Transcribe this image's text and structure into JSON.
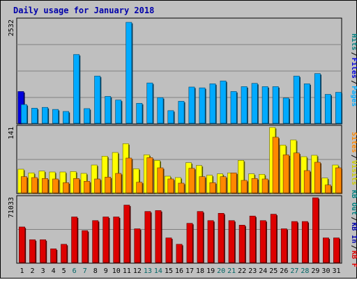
{
  "title": "Daily usage for January 2018",
  "colors": {
    "title": "#0000aa",
    "frame_bg": "#c0c0c0",
    "panel_bg": "#bfbfbf",
    "pages": "#00aaff",
    "files": "#0000dd",
    "hits": "#008080",
    "visits": "#ffff00",
    "sites": "#ff8800",
    "kbout": "#008080",
    "kbin": "#0000aa",
    "kbf": "#dd0000",
    "weekend_label": "#006666"
  },
  "chart_data": [
    {
      "type": "bar",
      "name": "pages-files-hits",
      "max_label": "2532",
      "ymax": 2532,
      "legend": [
        {
          "label": "Pages",
          "color": "#00aaff"
        },
        {
          "label": "Files",
          "color": "#0000dd"
        },
        {
          "label": "Hits",
          "color": "#008080"
        }
      ],
      "categories": [
        "1",
        "2",
        "3",
        "4",
        "5",
        "6",
        "7",
        "8",
        "9",
        "10",
        "11",
        "12",
        "13",
        "14",
        "15",
        "16",
        "17",
        "18",
        "19",
        "20",
        "21",
        "22",
        "23",
        "24",
        "25",
        "26",
        "27",
        "28",
        "29",
        "30",
        "31"
      ],
      "weekend": [
        6,
        7,
        13,
        14,
        20,
        21,
        27,
        28
      ],
      "series": [
        {
          "name": "Files",
          "color": "#0000dd",
          "values": [
            780,
            0,
            0,
            0,
            0,
            0,
            0,
            0,
            0,
            0,
            0,
            0,
            0,
            0,
            0,
            0,
            0,
            0,
            0,
            0,
            0,
            0,
            0,
            0,
            0,
            0,
            0,
            0,
            0,
            0,
            0
          ]
        },
        {
          "name": "Hits",
          "color": "#00aaff",
          "values": [
            460,
            370,
            390,
            340,
            290,
            1690,
            360,
            1160,
            660,
            570,
            2480,
            490,
            990,
            630,
            310,
            540,
            890,
            870,
            970,
            1040,
            780,
            900,
            980,
            900,
            900,
            620,
            1160,
            970,
            1220,
            710,
            760
          ]
        }
      ]
    },
    {
      "type": "bar",
      "name": "visits-sites",
      "max_label": "141",
      "ymax": 141,
      "legend": [
        {
          "label": "Visits",
          "color": "#cccc00"
        },
        {
          "label": "Sites",
          "color": "#ff8800"
        }
      ],
      "categories": [
        "1",
        "2",
        "3",
        "4",
        "5",
        "6",
        "7",
        "8",
        "9",
        "10",
        "11",
        "12",
        "13",
        "14",
        "15",
        "16",
        "17",
        "18",
        "19",
        "20",
        "21",
        "22",
        "23",
        "24",
        "25",
        "26",
        "27",
        "28",
        "29",
        "30",
        "31"
      ],
      "series": [
        {
          "name": "Visits",
          "color": "#ffff00",
          "values": [
            51,
            43,
            47,
            45,
            45,
            46,
            42,
            60,
            79,
            87,
            106,
            52,
            82,
            70,
            36,
            33,
            65,
            59,
            38,
            41,
            43,
            70,
            41,
            40,
            141,
            103,
            114,
            78,
            81,
            32,
            60
          ]
        },
        {
          "name": "Sites",
          "color": "#ff8800",
          "values": [
            35,
            33,
            31,
            30,
            22,
            31,
            25,
            30,
            34,
            42,
            75,
            23,
            76,
            54,
            30,
            21,
            53,
            35,
            22,
            35,
            43,
            27,
            31,
            30,
            120,
            82,
            86,
            48,
            66,
            17,
            54
          ]
        }
      ]
    },
    {
      "type": "bar",
      "name": "kbf-kbin-kbout",
      "max_label": "71033",
      "ymax": 71033,
      "legend": [
        {
          "label": "KB F",
          "color": "#dd0000"
        },
        {
          "label": "KB In",
          "color": "#0000aa"
        },
        {
          "label": "KB Out",
          "color": "#008080"
        }
      ],
      "categories": [
        "1",
        "2",
        "3",
        "4",
        "5",
        "6",
        "7",
        "8",
        "9",
        "10",
        "11",
        "12",
        "13",
        "14",
        "15",
        "16",
        "17",
        "18",
        "19",
        "20",
        "21",
        "22",
        "23",
        "24",
        "25",
        "26",
        "27",
        "28",
        "29",
        "30",
        "31"
      ],
      "series": [
        {
          "name": "KB F",
          "color": "#dd0000",
          "values": [
            39000,
            25000,
            25000,
            15000,
            20000,
            50000,
            35000,
            46000,
            50000,
            50000,
            63000,
            37000,
            56000,
            57000,
            27000,
            20000,
            43000,
            56000,
            46000,
            54000,
            46000,
            41000,
            51000,
            46000,
            53000,
            37000,
            45000,
            45000,
            71033,
            27000,
            27000
          ]
        }
      ]
    }
  ]
}
